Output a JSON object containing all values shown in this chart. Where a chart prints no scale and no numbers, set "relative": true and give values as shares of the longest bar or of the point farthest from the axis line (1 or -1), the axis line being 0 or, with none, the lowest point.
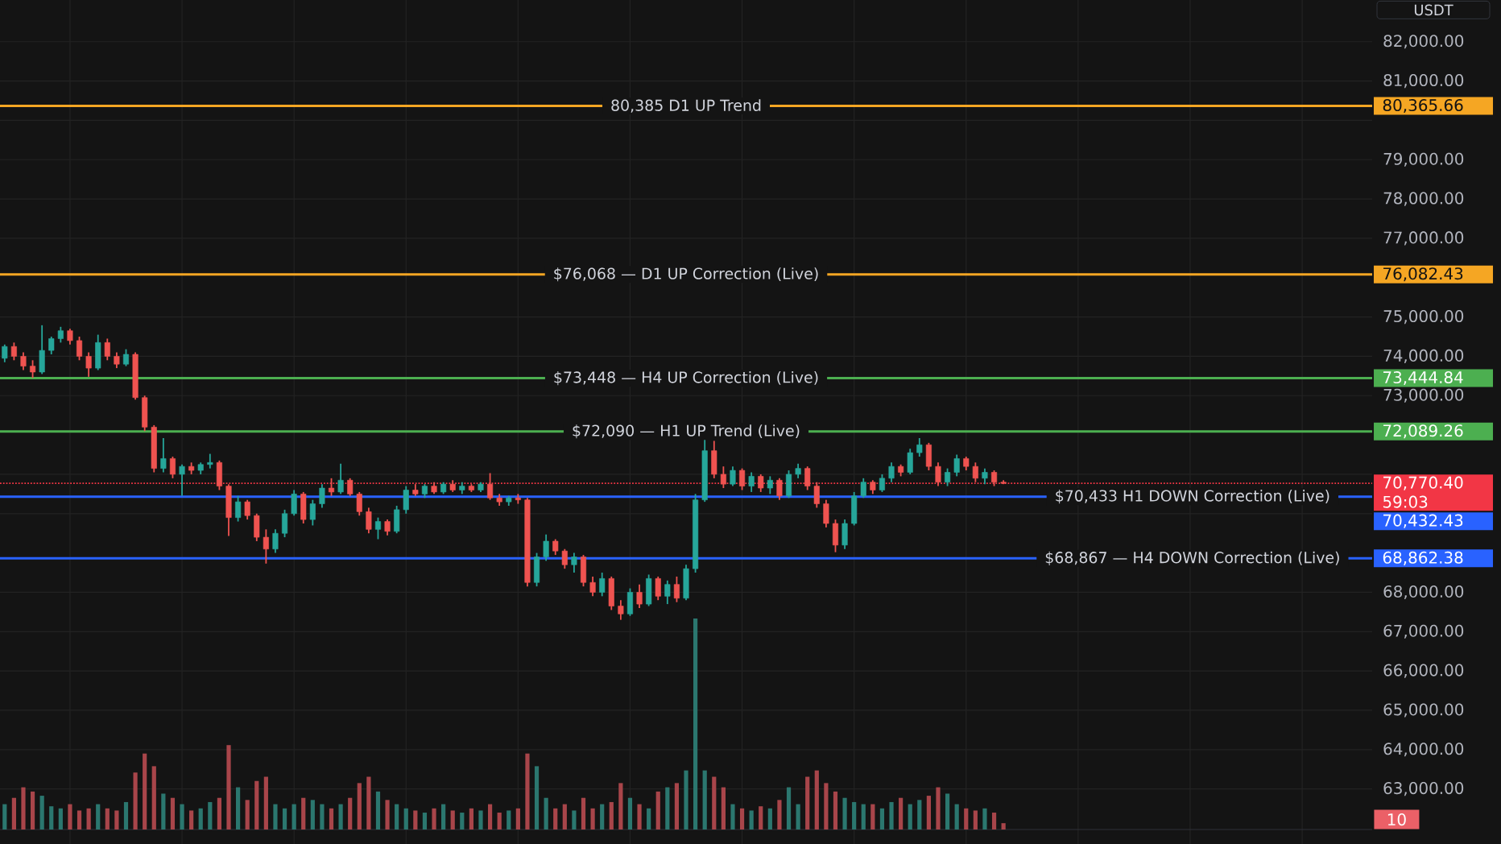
{
  "chart_data": [
    {
      "type": "candlestick",
      "categories": [
        null,
        null,
        null,
        null,
        null,
        null,
        null,
        null,
        null,
        null,
        null,
        null,
        null,
        null,
        null,
        null,
        null,
        null,
        null,
        null,
        null,
        null,
        null,
        null,
        null,
        null,
        null,
        null,
        null,
        null,
        null,
        null,
        null,
        null,
        null,
        null,
        null,
        null,
        null,
        null,
        null,
        null,
        null,
        null,
        null,
        null,
        null,
        null,
        null,
        null,
        null,
        null,
        null,
        null,
        null,
        null,
        null,
        null,
        null,
        null,
        null,
        null,
        null,
        null,
        null,
        null,
        null,
        null,
        null,
        null,
        null,
        null,
        null,
        null,
        null,
        null,
        null,
        null,
        null,
        null,
        null,
        null,
        null,
        null,
        null,
        null,
        null,
        null,
        null,
        null,
        null,
        null,
        null,
        null,
        null,
        null,
        null,
        null,
        null,
        null,
        null,
        null,
        null,
        null,
        null,
        null,
        null,
        null,
        null,
        null,
        null,
        null,
        null,
        null,
        null,
        null,
        null,
        null,
        null,
        null,
        null,
        null,
        null,
        null,
        null,
        null,
        null,
        null,
        null,
        null,
        null,
        null,
        null,
        null,
        null,
        null,
        null,
        null,
        null,
        null,
        null,
        null,
        null,
        null,
        null,
        null,
        null
      ],
      "ohlc": [
        [
          73950,
          74300,
          73850,
          74250
        ],
        [
          74250,
          74350,
          73900,
          74000
        ],
        [
          74000,
          74100,
          73650,
          73750
        ],
        [
          73750,
          73900,
          73450,
          73600
        ],
        [
          73600,
          74790,
          73550,
          74150
        ],
        [
          74150,
          74500,
          74050,
          74450
        ],
        [
          74450,
          74750,
          74350,
          74650
        ],
        [
          74650,
          74700,
          74300,
          74400
        ],
        [
          74400,
          74500,
          73900,
          74000
        ],
        [
          74000,
          74100,
          73480,
          73700
        ],
        [
          73700,
          74550,
          73650,
          74350
        ],
        [
          74350,
          74450,
          73900,
          74000
        ],
        [
          74000,
          74100,
          73700,
          73800
        ],
        [
          73800,
          74180,
          73750,
          74050
        ],
        [
          74050,
          74100,
          72900,
          72950
        ],
        [
          72950,
          73000,
          72100,
          72200
        ],
        [
          72200,
          72250,
          71050,
          71150
        ],
        [
          71150,
          71920,
          71050,
          71400
        ],
        [
          71400,
          71450,
          70900,
          71000
        ],
        [
          71000,
          71250,
          70450,
          71200
        ],
        [
          71200,
          71300,
          71000,
          71100
        ],
        [
          71100,
          71300,
          71000,
          71250
        ],
        [
          71250,
          71520,
          71150,
          71300
        ],
        [
          71300,
          71350,
          70600,
          70700
        ],
        [
          70700,
          70750,
          69430,
          69900
        ],
        [
          69900,
          70450,
          69800,
          70300
        ],
        [
          70300,
          70350,
          69850,
          69950
        ],
        [
          69950,
          70000,
          69300,
          69400
        ],
        [
          69400,
          69600,
          68730,
          69100
        ],
        [
          69100,
          69600,
          69000,
          69500
        ],
        [
          69500,
          70100,
          69400,
          70000
        ],
        [
          70000,
          70600,
          69950,
          70500
        ],
        [
          70500,
          70550,
          69750,
          69850
        ],
        [
          69850,
          70350,
          69700,
          70250
        ],
        [
          70250,
          70750,
          70150,
          70650
        ],
        [
          70650,
          70900,
          70450,
          70550
        ],
        [
          70550,
          71270,
          70500,
          70850
        ],
        [
          70850,
          70900,
          70450,
          70500
        ],
        [
          70500,
          70550,
          69950,
          70050
        ],
        [
          70050,
          70150,
          69500,
          69600
        ],
        [
          69600,
          69900,
          69350,
          69800
        ],
        [
          69800,
          69850,
          69450,
          69550
        ],
        [
          69550,
          70200,
          69500,
          70100
        ],
        [
          70100,
          70700,
          70000,
          70600
        ],
        [
          70600,
          70750,
          70450,
          70500
        ],
        [
          70500,
          70750,
          70400,
          70700
        ],
        [
          70700,
          70800,
          70500,
          70550
        ],
        [
          70550,
          70800,
          70500,
          70750
        ],
        [
          70750,
          70850,
          70550,
          70600
        ],
        [
          70600,
          70800,
          70500,
          70700
        ],
        [
          70700,
          70750,
          70550,
          70600
        ],
        [
          70600,
          70800,
          70550,
          70750
        ],
        [
          70750,
          71030,
          70350,
          70400
        ],
        [
          70400,
          70500,
          70200,
          70300
        ],
        [
          70300,
          70450,
          70200,
          70400
        ],
        [
          70400,
          70500,
          70250,
          70350
        ],
        [
          70350,
          70400,
          68150,
          68250
        ],
        [
          68250,
          69000,
          68150,
          68900
        ],
        [
          68900,
          69470,
          68800,
          69300
        ],
        [
          69300,
          69350,
          68950,
          69050
        ],
        [
          69050,
          69100,
          68600,
          68700
        ],
        [
          68700,
          69000,
          68500,
          68900
        ],
        [
          68900,
          68950,
          68150,
          68250
        ],
        [
          68250,
          68400,
          67900,
          68000
        ],
        [
          68000,
          68500,
          67900,
          68350
        ],
        [
          68350,
          68400,
          67550,
          67650
        ],
        [
          67650,
          67800,
          67300,
          67450
        ],
        [
          67450,
          68100,
          67400,
          68000
        ],
        [
          68000,
          68200,
          67600,
          67700
        ],
        [
          67700,
          68450,
          67650,
          68350
        ],
        [
          68350,
          68400,
          67800,
          67900
        ],
        [
          67900,
          68300,
          67700,
          68200
        ],
        [
          68200,
          68400,
          67750,
          67850
        ],
        [
          67850,
          68700,
          67800,
          68600
        ],
        [
          68600,
          70500,
          68500,
          70350
        ],
        [
          70350,
          71890,
          70300,
          71600
        ],
        [
          71600,
          71850,
          70900,
          71000
        ],
        [
          71000,
          71200,
          70650,
          70750
        ],
        [
          70750,
          71200,
          70700,
          71100
        ],
        [
          71100,
          71150,
          70600,
          70700
        ],
        [
          70700,
          71050,
          70550,
          70950
        ],
        [
          70950,
          71000,
          70550,
          70650
        ],
        [
          70650,
          70950,
          70500,
          70850
        ],
        [
          70850,
          70900,
          70350,
          70450
        ],
        [
          70450,
          71100,
          70400,
          71000
        ],
        [
          71000,
          71270,
          70900,
          71150
        ],
        [
          71150,
          71200,
          70600,
          70700
        ],
        [
          70700,
          70800,
          70150,
          70250
        ],
        [
          70250,
          70350,
          69650,
          69750
        ],
        [
          69750,
          69850,
          69020,
          69200
        ],
        [
          69200,
          69850,
          69100,
          69750
        ],
        [
          69750,
          70550,
          69700,
          70450
        ],
        [
          70450,
          70900,
          70400,
          70800
        ],
        [
          70800,
          70850,
          70500,
          70600
        ],
        [
          70600,
          71000,
          70550,
          70900
        ],
        [
          70900,
          71300,
          70800,
          71200
        ],
        [
          71200,
          71250,
          70950,
          71050
        ],
        [
          71050,
          71650,
          71000,
          71550
        ],
        [
          71550,
          71920,
          71450,
          71750
        ],
        [
          71750,
          71800,
          71100,
          71200
        ],
        [
          71200,
          71300,
          70700,
          70800
        ],
        [
          70800,
          71150,
          70700,
          71050
        ],
        [
          71050,
          71500,
          70950,
          71400
        ],
        [
          71400,
          71450,
          71100,
          71200
        ],
        [
          71200,
          71300,
          70800,
          70900
        ],
        [
          70900,
          71150,
          70750,
          71050
        ],
        [
          71050,
          71100,
          70700,
          70800
        ],
        [
          70800,
          70850,
          70750,
          70770.4
        ],
        null,
        null,
        null,
        null,
        null,
        null,
        null,
        null,
        null,
        null,
        null,
        null,
        null,
        null,
        null,
        null,
        null,
        null,
        null,
        null,
        null,
        null,
        null,
        null,
        null,
        null,
        null,
        null,
        null,
        null,
        null,
        null,
        null,
        null,
        null,
        null,
        null,
        null,
        null
      ],
      "colors": [
        "#26a69a",
        "#ef5350",
        "#ef5350",
        "#ef5350",
        "#26a69a",
        "#26a69a",
        "#26a69a",
        "#ef5350",
        "#ef5350",
        "#ef5350",
        "#26a69a",
        "#ef5350",
        "#ef5350",
        "#26a69a",
        "#ef5350",
        "#ef5350",
        "#ef5350",
        "#26a69a",
        "#ef5350",
        "#26a69a",
        "#ef5350",
        "#26a69a",
        "#26a69a",
        "#ef5350",
        "#ef5350",
        "#26a69a",
        "#ef5350",
        "#ef5350",
        "#ef5350",
        "#26a69a",
        "#26a69a",
        "#26a69a",
        "#ef5350",
        "#26a69a",
        "#26a69a",
        "#ef5350",
        "#26a69a",
        "#ef5350",
        "#ef5350",
        "#ef5350",
        "#26a69a",
        "#ef5350",
        "#26a69a",
        "#26a69a",
        "#ef5350",
        "#26a69a",
        "#ef5350",
        "#26a69a",
        "#ef5350",
        "#26a69a",
        "#ef5350",
        "#26a69a",
        "#ef5350",
        "#ef5350",
        "#26a69a",
        "#ef5350",
        "#ef5350",
        "#26a69a",
        "#26a69a",
        "#ef5350",
        "#ef5350",
        "#26a69a",
        "#ef5350",
        "#ef5350",
        "#26a69a",
        "#ef5350",
        "#ef5350",
        "#26a69a",
        "#ef5350",
        "#26a69a",
        "#ef5350",
        "#26a69a",
        "#ef5350",
        "#26a69a",
        "#26a69a",
        "#26a69a",
        "#ef5350",
        "#ef5350",
        "#26a69a",
        "#ef5350",
        "#26a69a",
        "#ef5350",
        "#26a69a",
        "#ef5350",
        "#26a69a",
        "#26a69a",
        "#ef5350",
        "#ef5350",
        "#ef5350",
        "#ef5350",
        "#26a69a",
        "#26a69a",
        "#26a69a",
        "#ef5350",
        "#26a69a",
        "#26a69a",
        "#ef5350",
        "#26a69a",
        "#26a69a",
        "#ef5350",
        "#ef5350",
        "#26a69a",
        "#26a69a",
        "#ef5350",
        "#ef5350",
        "#26a69a",
        "#ef5350",
        "#ef5350",
        null,
        null,
        null,
        null,
        null,
        null,
        null,
        null,
        null,
        null,
        null,
        null,
        null,
        null,
        null,
        null,
        null,
        null,
        null,
        null,
        null,
        null,
        null,
        null,
        null,
        null,
        null,
        null,
        null,
        null,
        null,
        null,
        null,
        null,
        null,
        null,
        null,
        null,
        null
      ],
      "ylabel": "USDT",
      "ylim": [
        61600,
        83060
      ],
      "yticks": [
        {
          "value": 63000,
          "label": "63,000.00"
        },
        {
          "value": 64000,
          "label": "64,000.00"
        },
        {
          "value": 65000,
          "label": "65,000.00"
        },
        {
          "value": 66000,
          "label": "66,000.00"
        },
        {
          "value": 67000,
          "label": "67,000.00"
        },
        {
          "value": 68000,
          "label": "68,000.00"
        },
        {
          "value": 70000,
          "label": null
        },
        {
          "value": 71000,
          "label": null
        },
        {
          "value": 73000,
          "label": "73,000.00"
        },
        {
          "value": 74000,
          "label": "74,000.00"
        },
        {
          "value": 75000,
          "label": "75,000.00"
        },
        {
          "value": 77000,
          "label": "77,000.00"
        },
        {
          "value": 78000,
          "label": "78,000.00"
        },
        {
          "value": 79000,
          "label": "79,000.00"
        },
        {
          "value": 80000,
          "label": null
        },
        {
          "value": 81000,
          "label": "81,000.00"
        },
        {
          "value": 82000,
          "label": "82,000.00"
        }
      ],
      "grid": "y",
      "tick_labels": "y",
      "ref_lines": [
        {
          "axis": "y",
          "value": 80365.66,
          "label": "80,385 D1 UP Trend",
          "color": "#f5a623"
        },
        {
          "axis": "y",
          "value": 76082.43,
          "label": "$76,068 — D1 UP Correction (Live)",
          "color": "#f5a623"
        },
        {
          "axis": "y",
          "value": 73444.84,
          "label": "$73,448 — H4 UP Correction (Live)",
          "color": "#4caf50"
        },
        {
          "axis": "y",
          "value": 72089.26,
          "label": "$72,090 — H1 UP Trend (Live)",
          "color": "#4caf50"
        },
        {
          "axis": "y",
          "value": 70770.4,
          "color": "#f23645",
          "line_style": "dotted"
        },
        {
          "axis": "y",
          "value": 70432.43,
          "label": "$70,433 H1 DOWN Correction (Live)",
          "color": "#2962ff"
        },
        {
          "axis": "y",
          "value": 68862.38,
          "label": "$68,867 — H4 DOWN Correction (Live)",
          "color": "#2962ff"
        }
      ],
      "annotations": [
        "80,365.66",
        "76,082.43",
        "73,444.84",
        "72,089.26",
        "70,770.40",
        "70,432.43",
        "68,862.38",
        "59:03"
      ]
    },
    {
      "type": "bar",
      "relative": true,
      "categories": [
        null,
        null,
        null,
        null,
        null,
        null,
        null,
        null,
        null,
        null,
        null,
        null,
        null,
        null,
        null,
        null,
        null,
        null,
        null,
        null,
        null,
        null,
        null,
        null,
        null,
        null,
        null,
        null,
        null,
        null,
        null,
        null,
        null,
        null,
        null,
        null,
        null,
        null,
        null,
        null,
        null,
        null,
        null,
        null,
        null,
        null,
        null,
        null,
        null,
        null,
        null,
        null,
        null,
        null,
        null,
        null,
        null,
        null,
        null,
        null,
        null,
        null,
        null,
        null,
        null,
        null,
        null,
        null,
        null,
        null,
        null,
        null,
        null,
        null,
        null,
        null,
        null,
        null,
        null,
        null,
        null,
        null,
        null,
        null,
        null,
        null,
        null,
        null,
        null,
        null,
        null,
        null,
        null,
        null,
        null,
        null,
        null,
        null,
        null,
        null,
        null,
        null,
        null,
        null,
        null,
        null,
        null,
        null,
        null,
        null,
        null,
        null,
        null,
        null,
        null,
        null,
        null,
        null,
        null,
        null,
        null,
        null,
        null,
        null,
        null,
        null,
        null,
        null,
        null,
        null,
        null,
        null,
        null,
        null,
        null,
        null,
        null,
        null,
        null,
        null,
        null,
        null,
        null,
        null,
        null,
        null,
        null
      ],
      "values": [
        0.12,
        0.15,
        0.2,
        0.18,
        0.16,
        0.11,
        0.1,
        0.12,
        0.09,
        0.1,
        0.12,
        0.1,
        0.09,
        0.13,
        0.27,
        0.36,
        0.3,
        0.17,
        0.15,
        0.12,
        0.09,
        0.1,
        0.13,
        0.15,
        0.4,
        0.2,
        0.14,
        0.23,
        0.25,
        0.12,
        0.1,
        0.12,
        0.15,
        0.14,
        0.12,
        0.1,
        0.12,
        0.15,
        0.22,
        0.25,
        0.18,
        0.14,
        0.12,
        0.1,
        0.09,
        0.08,
        0.1,
        0.12,
        0.09,
        0.08,
        0.1,
        0.09,
        0.12,
        0.08,
        0.09,
        0.1,
        0.36,
        0.3,
        0.15,
        0.1,
        0.12,
        0.09,
        0.15,
        0.1,
        0.12,
        0.13,
        0.22,
        0.15,
        0.12,
        0.1,
        0.18,
        0.2,
        0.22,
        0.28,
        1.0,
        0.28,
        0.25,
        0.2,
        0.12,
        0.1,
        0.09,
        0.11,
        0.1,
        0.14,
        0.2,
        0.12,
        0.25,
        0.28,
        0.22,
        0.18,
        0.15,
        0.13,
        0.12,
        0.12,
        0.1,
        0.13,
        0.15,
        0.12,
        0.14,
        0.16,
        0.2,
        0.17,
        0.12,
        0.1,
        0.09,
        0.1,
        0.08,
        0.03,
        null,
        null,
        null,
        null,
        null,
        null,
        null,
        null,
        null,
        null,
        null,
        null,
        null,
        null,
        null,
        null,
        null,
        null,
        null,
        null,
        null,
        null,
        null,
        null,
        null,
        null,
        null,
        null,
        null,
        null,
        null,
        null,
        null,
        null,
        null,
        null,
        null,
        null,
        null
      ],
      "colors": [
        "#2b776f",
        "#a8454a",
        "#a8454a",
        "#a8454a",
        "#2b776f",
        "#2b776f",
        "#2b776f",
        "#a8454a",
        "#a8454a",
        "#a8454a",
        "#2b776f",
        "#a8454a",
        "#a8454a",
        "#2b776f",
        "#a8454a",
        "#a8454a",
        "#a8454a",
        "#2b776f",
        "#a8454a",
        "#2b776f",
        "#a8454a",
        "#2b776f",
        "#2b776f",
        "#a8454a",
        "#a8454a",
        "#2b776f",
        "#a8454a",
        "#a8454a",
        "#a8454a",
        "#2b776f",
        "#2b776f",
        "#2b776f",
        "#a8454a",
        "#2b776f",
        "#2b776f",
        "#a8454a",
        "#2b776f",
        "#a8454a",
        "#a8454a",
        "#a8454a",
        "#2b776f",
        "#a8454a",
        "#2b776f",
        "#2b776f",
        "#a8454a",
        "#2b776f",
        "#a8454a",
        "#2b776f",
        "#a8454a",
        "#2b776f",
        "#a8454a",
        "#2b776f",
        "#a8454a",
        "#a8454a",
        "#2b776f",
        "#a8454a",
        "#a8454a",
        "#2b776f",
        "#2b776f",
        "#a8454a",
        "#a8454a",
        "#2b776f",
        "#a8454a",
        "#a8454a",
        "#2b776f",
        "#a8454a",
        "#a8454a",
        "#2b776f",
        "#a8454a",
        "#2b776f",
        "#a8454a",
        "#2b776f",
        "#a8454a",
        "#2b776f",
        "#2b776f",
        "#2b776f",
        "#a8454a",
        "#a8454a",
        "#2b776f",
        "#a8454a",
        "#2b776f",
        "#a8454a",
        "#2b776f",
        "#a8454a",
        "#2b776f",
        "#2b776f",
        "#a8454a",
        "#a8454a",
        "#a8454a",
        "#a8454a",
        "#2b776f",
        "#2b776f",
        "#2b776f",
        "#a8454a",
        "#2b776f",
        "#2b776f",
        "#a8454a",
        "#2b776f",
        "#2b776f",
        "#a8454a",
        "#a8454a",
        "#2b776f",
        "#2b776f",
        "#a8454a",
        "#a8454a",
        "#2b776f",
        "#a8454a",
        "#a8454a",
        null,
        null,
        null,
        null,
        null,
        null,
        null,
        null,
        null,
        null,
        null,
        null,
        null,
        null,
        null,
        null,
        null,
        null,
        null,
        null,
        null,
        null,
        null,
        null,
        null,
        null,
        null,
        null,
        null,
        null,
        null,
        null,
        null,
        null,
        null,
        null,
        null,
        null,
        null
      ],
      "annotations": [
        "10"
      ]
    }
  ]
}
